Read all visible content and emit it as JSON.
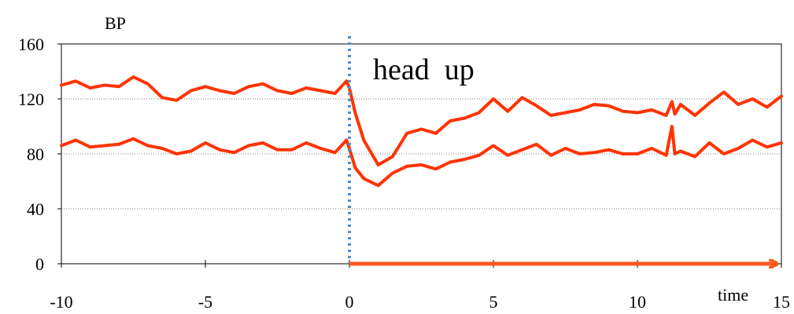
{
  "chart_data": {
    "type": "line",
    "title": "",
    "xlabel": "time",
    "ylabel": "BP",
    "xlim": [
      -10,
      15
    ],
    "ylim": [
      0,
      160
    ],
    "x_ticks": [
      -10,
      -5,
      0,
      5,
      10,
      15
    ],
    "y_ticks": [
      0,
      40,
      80,
      120,
      160
    ],
    "grid": "horizontal-dotted",
    "legend": "none",
    "event": {
      "x": 0,
      "label": "head  up"
    },
    "series": [
      {
        "color": "#ff3300",
        "x": [
          -10,
          -9.5,
          -9,
          -8.5,
          -8,
          -7.5,
          -7,
          -6.5,
          -6,
          -5.5,
          -5,
          -4.5,
          -4,
          -3.5,
          -3,
          -2.5,
          -2,
          -1.5,
          -1,
          -0.5,
          -0.1,
          0,
          0.2,
          0.5,
          1,
          1.5,
          2,
          2.5,
          3,
          3.5,
          4,
          4.5,
          5,
          5.5,
          6,
          6.5,
          7,
          7.5,
          8,
          8.5,
          9,
          9.5,
          10,
          10.5,
          11,
          11.2,
          11.3,
          11.5,
          12,
          12.5,
          13,
          13.5,
          14,
          14.5,
          15
        ],
        "y": [
          130,
          133,
          128,
          130,
          129,
          136,
          131,
          121,
          119,
          126,
          129,
          126,
          124,
          129,
          131,
          126,
          124,
          128,
          126,
          124,
          133,
          128,
          110,
          90,
          72,
          78,
          95,
          98,
          95,
          104,
          106,
          110,
          120,
          111,
          121,
          115,
          108,
          110,
          112,
          116,
          115,
          111,
          110,
          112,
          108,
          118,
          109,
          116,
          108,
          117,
          125,
          116,
          120,
          114,
          122
        ]
      },
      {
        "color": "#ff3300",
        "x": [
          -10,
          -9.5,
          -9,
          -8.5,
          -8,
          -7.5,
          -7,
          -6.5,
          -6,
          -5.5,
          -5,
          -4.5,
          -4,
          -3.5,
          -3,
          -2.5,
          -2,
          -1.5,
          -1,
          -0.5,
          -0.1,
          0,
          0.2,
          0.5,
          1,
          1.5,
          2,
          2.5,
          3,
          3.5,
          4,
          4.5,
          5,
          5.5,
          6,
          6.5,
          7,
          7.5,
          8,
          8.5,
          9,
          9.5,
          10,
          10.5,
          11,
          11.2,
          11.3,
          11.5,
          12,
          12.5,
          13,
          13.5,
          14,
          14.5,
          15
        ],
        "y": [
          86,
          90,
          85,
          86,
          87,
          91,
          86,
          84,
          80,
          82,
          88,
          83,
          81,
          86,
          88,
          83,
          83,
          88,
          84,
          81,
          90,
          84,
          70,
          62,
          57,
          66,
          71,
          72,
          69,
          74,
          76,
          79,
          86,
          79,
          83,
          87,
          79,
          84,
          80,
          81,
          83,
          80,
          80,
          84,
          79,
          100,
          80,
          82,
          78,
          88,
          80,
          84,
          90,
          85,
          88
        ]
      }
    ]
  }
}
